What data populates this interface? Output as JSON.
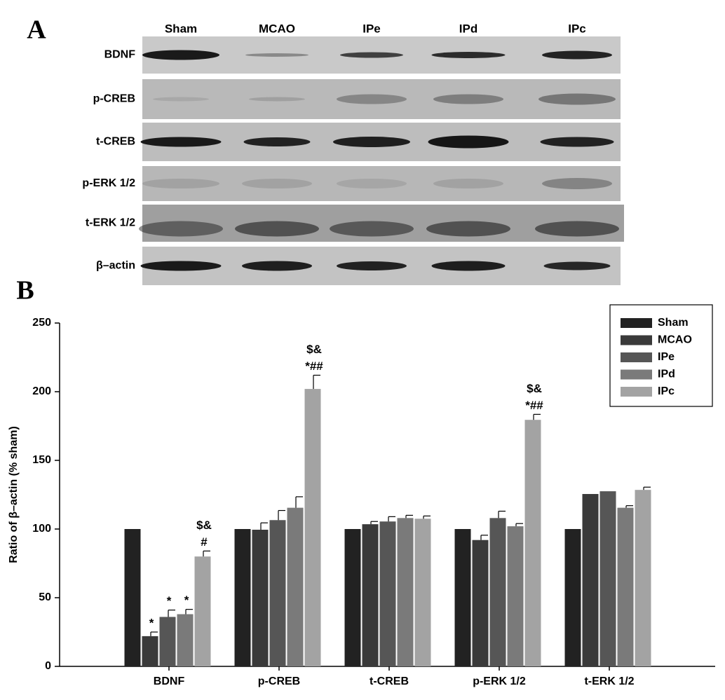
{
  "panel_labels": [
    "A",
    "B"
  ],
  "blot": {
    "lanes": [
      "Sham",
      "MCAO",
      "IPe",
      "IPd",
      "IPc"
    ],
    "rows": [
      "BDNF",
      "p-CREB",
      "t-CREB",
      "p-ERK 1/2",
      "t-ERK 1/2",
      "β–actin"
    ]
  },
  "chart_data": {
    "type": "bar",
    "ylabel": "Ratio of β–actin (% sham)",
    "categories": [
      "BDNF",
      "p-CREB",
      "t-CREB",
      "p-ERK 1/2",
      "t-ERK 1/2"
    ],
    "ylim": [
      0,
      250
    ],
    "yticks": [
      0,
      50,
      100,
      150,
      200,
      250
    ],
    "legend": "upper right",
    "series": [
      {
        "name": "Sham",
        "color": "#222222",
        "values": [
          100,
          100,
          100,
          100,
          100
        ],
        "errors": [
          0,
          0,
          0,
          0,
          0
        ]
      },
      {
        "name": "MCAO",
        "color": "#3a3a3a",
        "values": [
          22,
          99.5,
          103.5,
          92,
          125.5
        ],
        "errors": [
          3,
          5,
          2,
          3.5,
          0
        ],
        "annotations": [
          [
            "*"
          ],
          null,
          null,
          null,
          null
        ]
      },
      {
        "name": "IPe",
        "color": "#565656",
        "values": [
          36,
          106.5,
          105.5,
          108,
          127.5
        ],
        "errors": [
          5,
          7,
          3.5,
          5,
          0
        ],
        "annotations": [
          [
            "*"
          ],
          null,
          null,
          null,
          null
        ]
      },
      {
        "name": "IPd",
        "color": "#7a7a7a",
        "values": [
          38,
          115.5,
          108,
          102,
          115.5
        ],
        "errors": [
          3.5,
          8,
          2,
          2,
          1.5
        ],
        "annotations": [
          [
            "*"
          ],
          null,
          null,
          null,
          null
        ]
      },
      {
        "name": "IPc",
        "color": "#a3a3a3",
        "values": [
          80,
          202,
          107.5,
          179.5,
          128.5
        ],
        "errors": [
          4,
          10,
          2,
          4,
          2
        ],
        "annotations": [
          [
            "$&",
            "#"
          ],
          [
            "$&",
            "*##"
          ],
          null,
          [
            "$&",
            "*##"
          ],
          null
        ]
      }
    ]
  }
}
